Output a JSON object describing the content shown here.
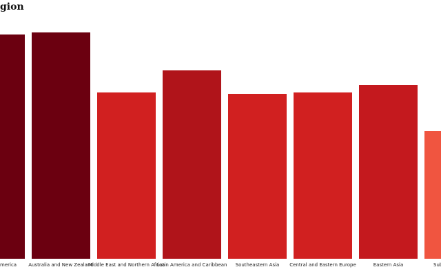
{
  "chart_data": {
    "type": "bar",
    "title": "gion",
    "categories": [
      "merica",
      "Australia and New Zealand",
      "Middle East and Northern Africa",
      "Latin America and Caribbean",
      "Southeastern Asia",
      "Central and Eastern Europe",
      "Eastern Asia",
      "Sub"
    ],
    "values": [
      325,
      328,
      241,
      273,
      239,
      241,
      252,
      185
    ],
    "colors": [
      "#6b0010",
      "#6b0010",
      "#d12020",
      "#b0141a",
      "#d12020",
      "#d12020",
      "#c4191e",
      "#f05540"
    ]
  }
}
